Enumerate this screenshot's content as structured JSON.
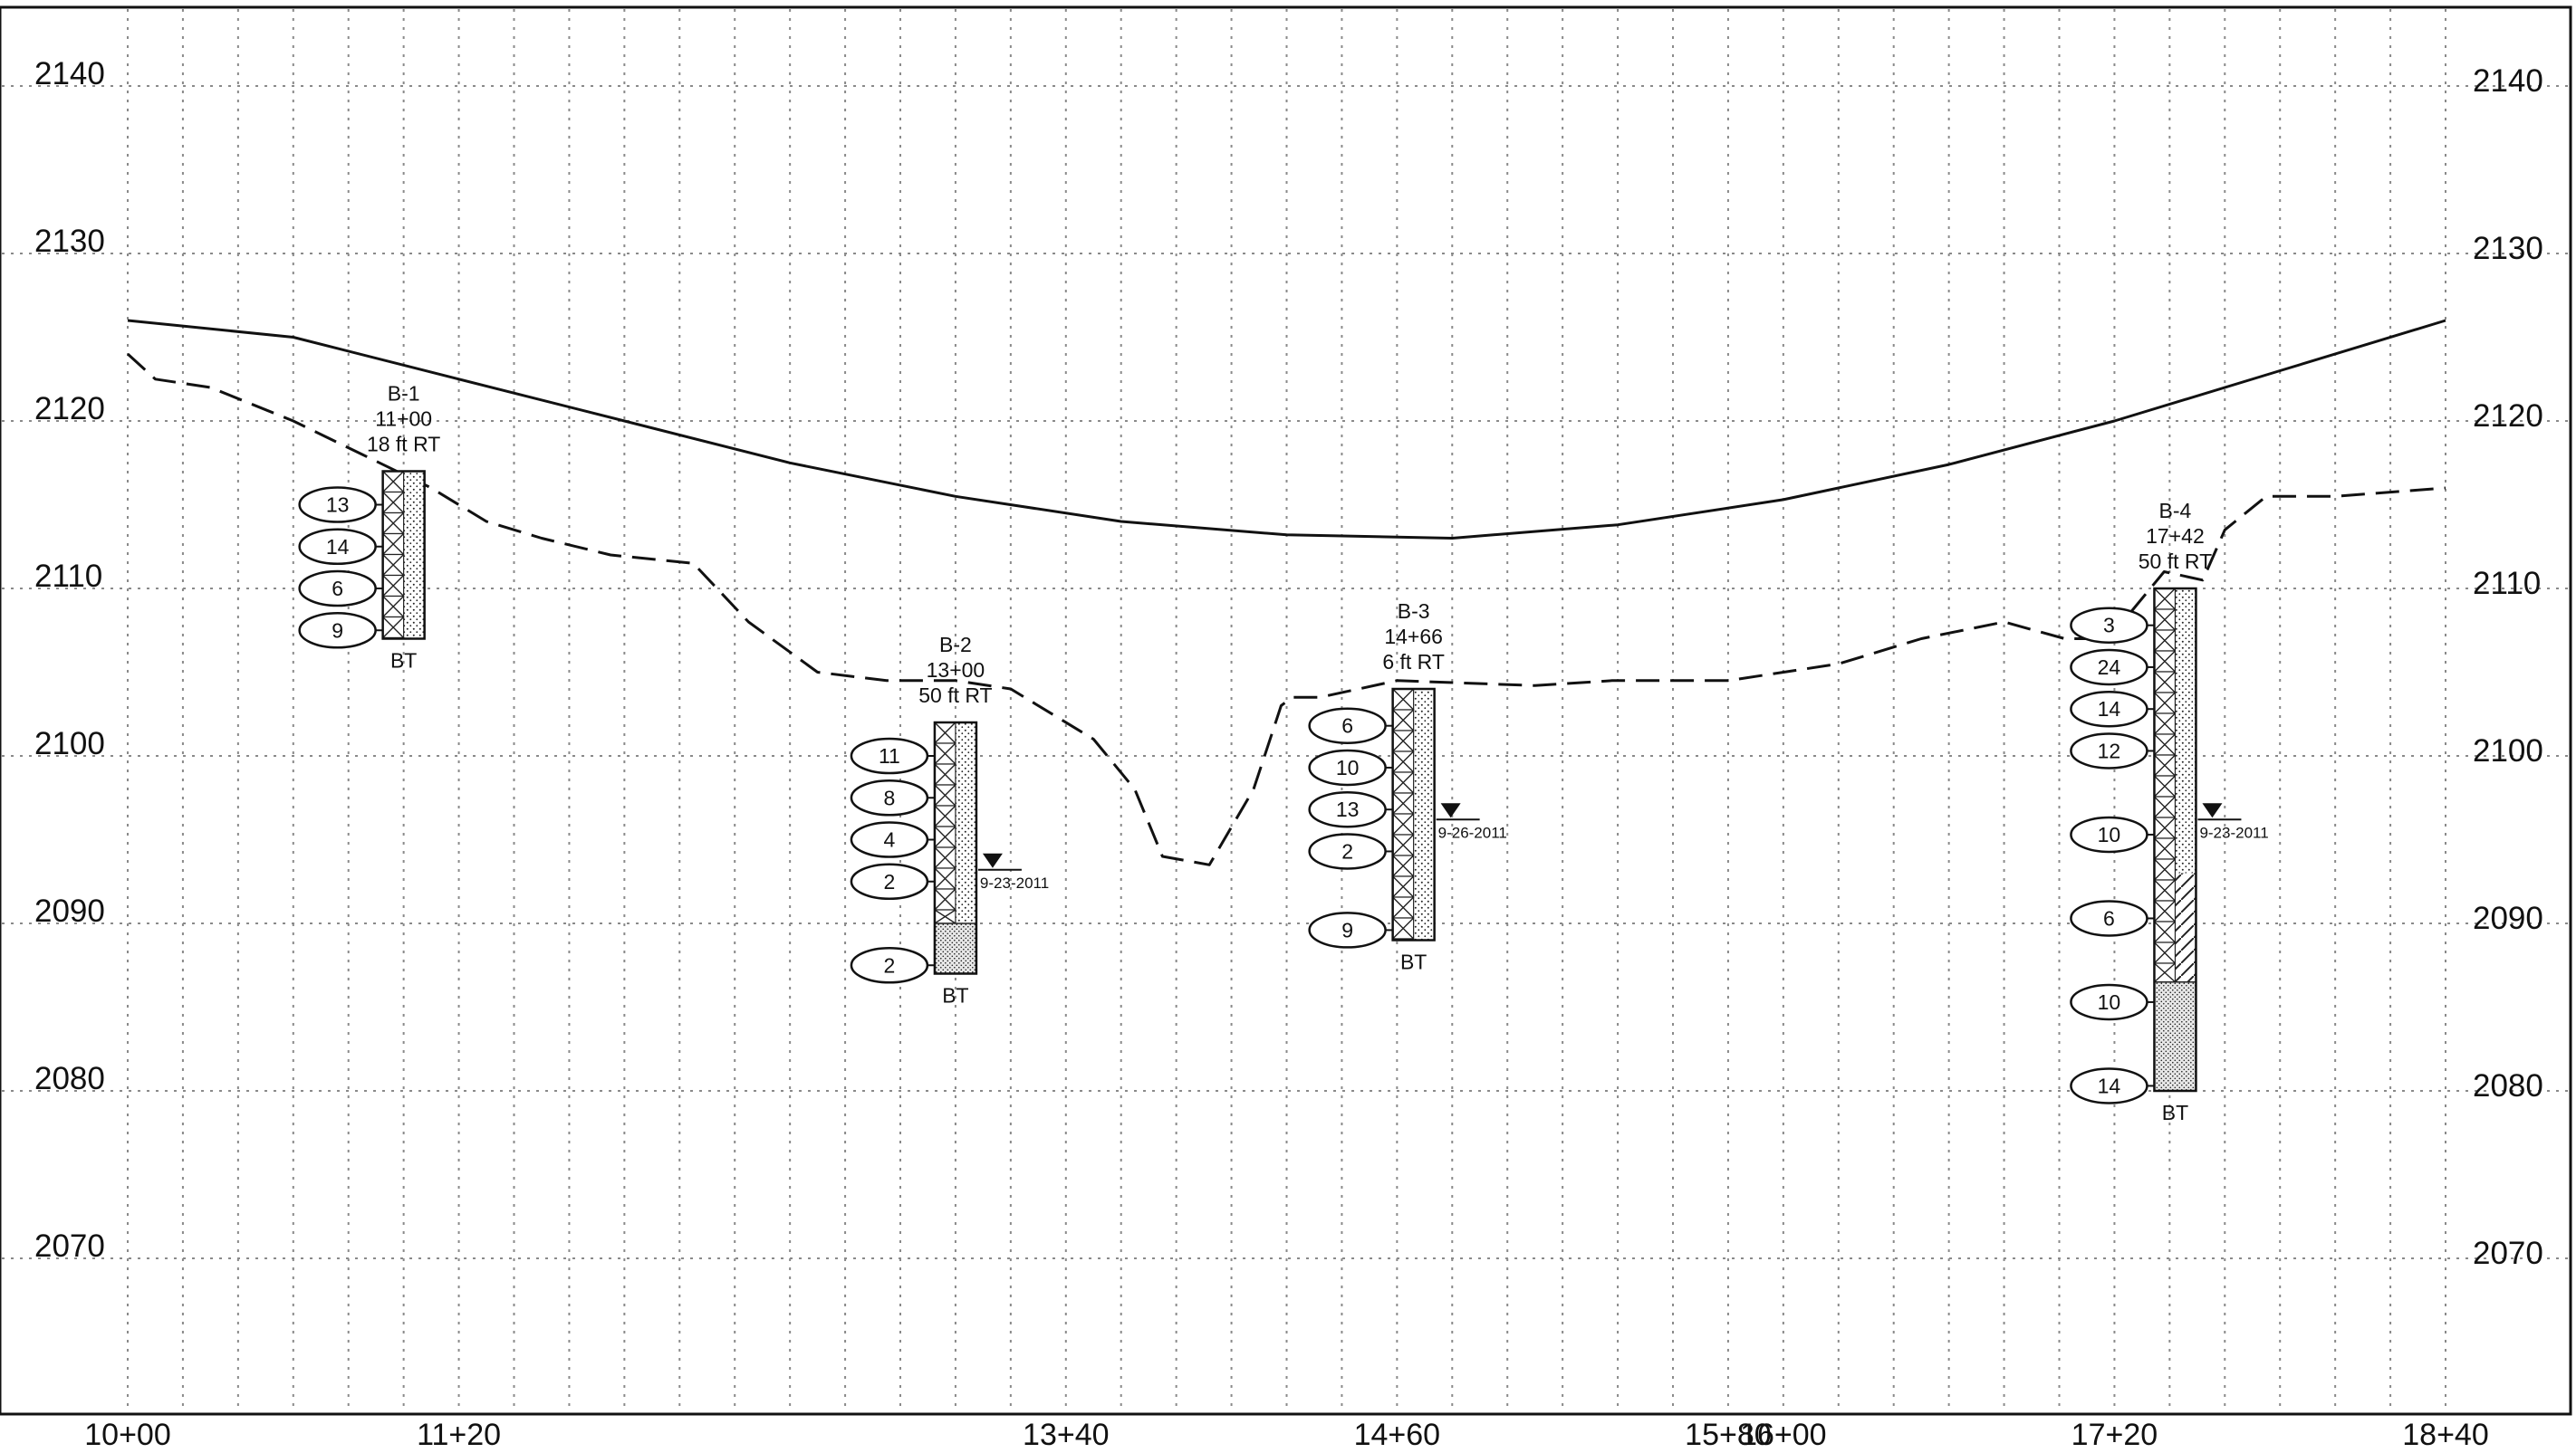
{
  "chart_data": {
    "type": "profile",
    "title": "",
    "xlabel": "",
    "ylabel": "",
    "xlim": [
      1000,
      1840
    ],
    "ylim": [
      2060,
      2145
    ],
    "grid": true,
    "y_ticks": [
      {
        "value": 2140,
        "label": "2140"
      },
      {
        "value": 2130,
        "label": "2130"
      },
      {
        "value": 2120,
        "label": "2120"
      },
      {
        "value": 2110,
        "label": "2110"
      },
      {
        "value": 2100,
        "label": "2100"
      },
      {
        "value": 2090,
        "label": "2090"
      },
      {
        "value": 2080,
        "label": "2080"
      },
      {
        "value": 2070,
        "label": "2070"
      }
    ],
    "x_ticks": [
      {
        "value": 1000,
        "label": "10+00"
      },
      {
        "value": 1120,
        "label": "11+20"
      },
      {
        "value": 1340,
        "label": "13+40"
      },
      {
        "value": 1460,
        "label": "14+60"
      },
      {
        "value": 1580,
        "label": "15+80"
      },
      {
        "value": 1600,
        "label": "16+00"
      },
      {
        "value": 1720,
        "label": "17+20"
      },
      {
        "value": 1840,
        "label": "18+40"
      }
    ],
    "series": [
      {
        "style": "solid",
        "x": [
          1000,
          1060,
          1120,
          1180,
          1240,
          1300,
          1360,
          1420,
          1480,
          1540,
          1600,
          1660,
          1720,
          1780,
          1840
        ],
        "y": [
          2126,
          2125,
          2122.5,
          2120,
          2117.5,
          2115.5,
          2114,
          2113.2,
          2113,
          2113.8,
          2115.3,
          2117.4,
          2120,
          2123,
          2126
        ]
      },
      {
        "style": "dashed",
        "x": [
          1000,
          1010,
          1030,
          1060,
          1085,
          1110,
          1130,
          1150,
          1175,
          1205,
          1225,
          1250,
          1275,
          1300,
          1320,
          1350,
          1365,
          1375,
          1392,
          1408,
          1415,
          1418,
          1422,
          1432,
          1460,
          1510,
          1538,
          1580,
          1620,
          1650,
          1680,
          1702,
          1718,
          1738,
          1752,
          1760,
          1775,
          1800,
          1840
        ],
        "y": [
          2124,
          2122.5,
          2122,
          2120,
          2118,
          2116,
          2114,
          2113,
          2112,
          2111.5,
          2108,
          2105,
          2104.5,
          2104.5,
          2104,
          2101,
          2098,
          2094,
          2093.5,
          2098,
          2101.5,
          2103,
          2103.5,
          2103.5,
          2104.5,
          2104.2,
          2104.5,
          2104.5,
          2105.5,
          2107,
          2108,
          2107,
          2107,
          2111,
          2110.5,
          2113.5,
          2115.5,
          2115.5,
          2116
        ]
      }
    ],
    "borings": [
      {
        "name": "B-1",
        "station_label": "11+00",
        "offset_label": "18  ft RT",
        "station": 1100,
        "top": 2117,
        "bottom": 2107,
        "end_label": "BT",
        "spt": [
          {
            "value": "13",
            "elev": 2115
          },
          {
            "value": "14",
            "elev": 2112.5
          },
          {
            "value": "6",
            "elev": 2110
          },
          {
            "value": "9",
            "elev": 2107.5
          }
        ],
        "water": null
      },
      {
        "name": "B-2",
        "station_label": "13+00",
        "offset_label": "50  ft RT",
        "station": 1300,
        "top": 2102,
        "bottom": 2087,
        "end_label": "BT",
        "spt": [
          {
            "value": "11",
            "elev": 2100
          },
          {
            "value": "8",
            "elev": 2097.5
          },
          {
            "value": "4",
            "elev": 2095
          },
          {
            "value": "2",
            "elev": 2092.5
          },
          {
            "value": "2",
            "elev": 2087.5
          }
        ],
        "water": {
          "elev": 2093.2,
          "date": "9-23-2011"
        }
      },
      {
        "name": "B-3",
        "station_label": "14+66",
        "offset_label": "6  ft RT",
        "station": 1466,
        "top": 2104,
        "bottom": 2089,
        "end_label": "BT",
        "spt": [
          {
            "value": "6",
            "elev": 2101.8
          },
          {
            "value": "10",
            "elev": 2099.3
          },
          {
            "value": "13",
            "elev": 2096.8
          },
          {
            "value": "2",
            "elev": 2094.3
          },
          {
            "value": "9",
            "elev": 2089.6
          }
        ],
        "water": {
          "elev": 2096.2,
          "date": "9-26-2011"
        }
      },
      {
        "name": "B-4",
        "station_label": "17+42",
        "offset_label": "50  ft RT",
        "station": 1742,
        "top": 2110,
        "bottom": 2080,
        "end_label": "BT",
        "spt": [
          {
            "value": "3",
            "elev": 2107.8
          },
          {
            "value": "24",
            "elev": 2105.3
          },
          {
            "value": "14",
            "elev": 2102.8
          },
          {
            "value": "12",
            "elev": 2100.3
          },
          {
            "value": "10",
            "elev": 2095.3
          },
          {
            "value": "6",
            "elev": 2090.3
          },
          {
            "value": "10",
            "elev": 2085.3
          },
          {
            "value": "14",
            "elev": 2080.3
          }
        ],
        "water": {
          "elev": 2096.2,
          "date": "9-23-2011"
        }
      }
    ]
  }
}
